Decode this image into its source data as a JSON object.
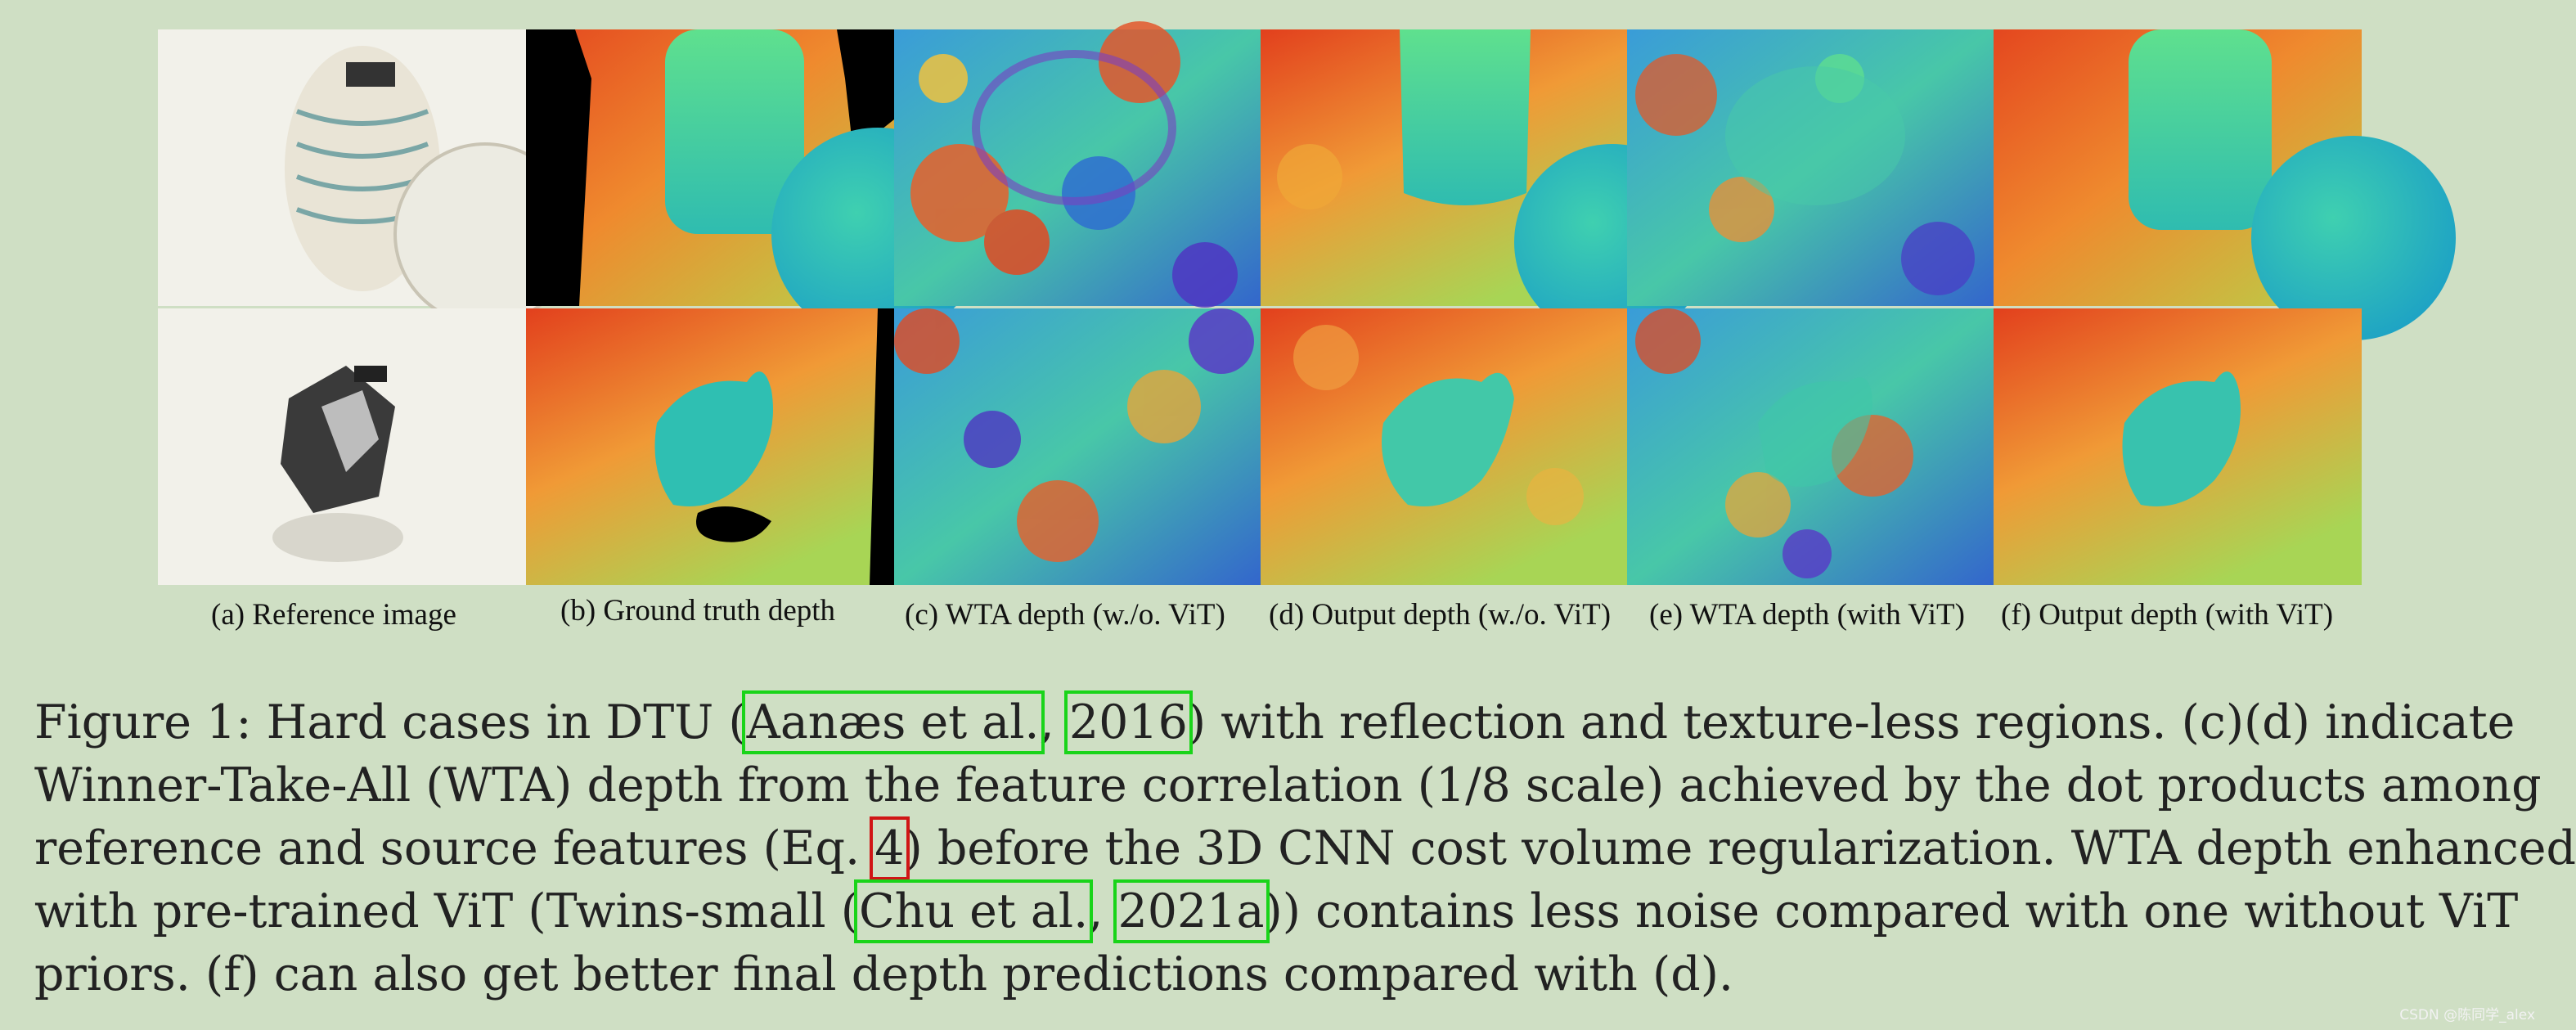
{
  "figure": {
    "subcaptions": {
      "a": "(a) Reference image",
      "b": "(b) Ground truth depth",
      "c": "(c) WTA depth (w./o. ViT)",
      "d": "(d) Output depth (w./o. ViT)",
      "e": "(e) WTA depth (with ViT)",
      "f": "(f) Output depth (with ViT)"
    },
    "colormap": {
      "near": "#1aa6c8",
      "mid": "#3fd6a6",
      "far": "#e64a1f",
      "invalid": "#000000",
      "noise_purple": "#5a33c8"
    }
  },
  "caption": {
    "line1": {
      "before": "Figure 1: Hard cases in DTU (",
      "cite1": "Aanæs et al.",
      "sep": ", ",
      "cite2": "2016",
      "after": ") with reflection and texture-less regions. (c)(d) indicate"
    },
    "line2": "Winner-Take-All (WTA) depth from the feature correlation (1/8 scale) achieved by the dot products among",
    "line3": {
      "before": "reference and source features (Eq. ",
      "ref": "4",
      "after": ") before the 3D CNN cost volume regularization. WTA depth enhanced"
    },
    "line4": {
      "before": "with pre-trained ViT (Twins-small (",
      "cite1": "Chu et al.",
      "sep": ", ",
      "cite2": "2021a",
      "after": ")) contains less noise compared with one without ViT"
    },
    "line5": "priors. (f) can also get better final depth predictions compared with (d)."
  },
  "watermark": "CSDN @陈同学_alex"
}
